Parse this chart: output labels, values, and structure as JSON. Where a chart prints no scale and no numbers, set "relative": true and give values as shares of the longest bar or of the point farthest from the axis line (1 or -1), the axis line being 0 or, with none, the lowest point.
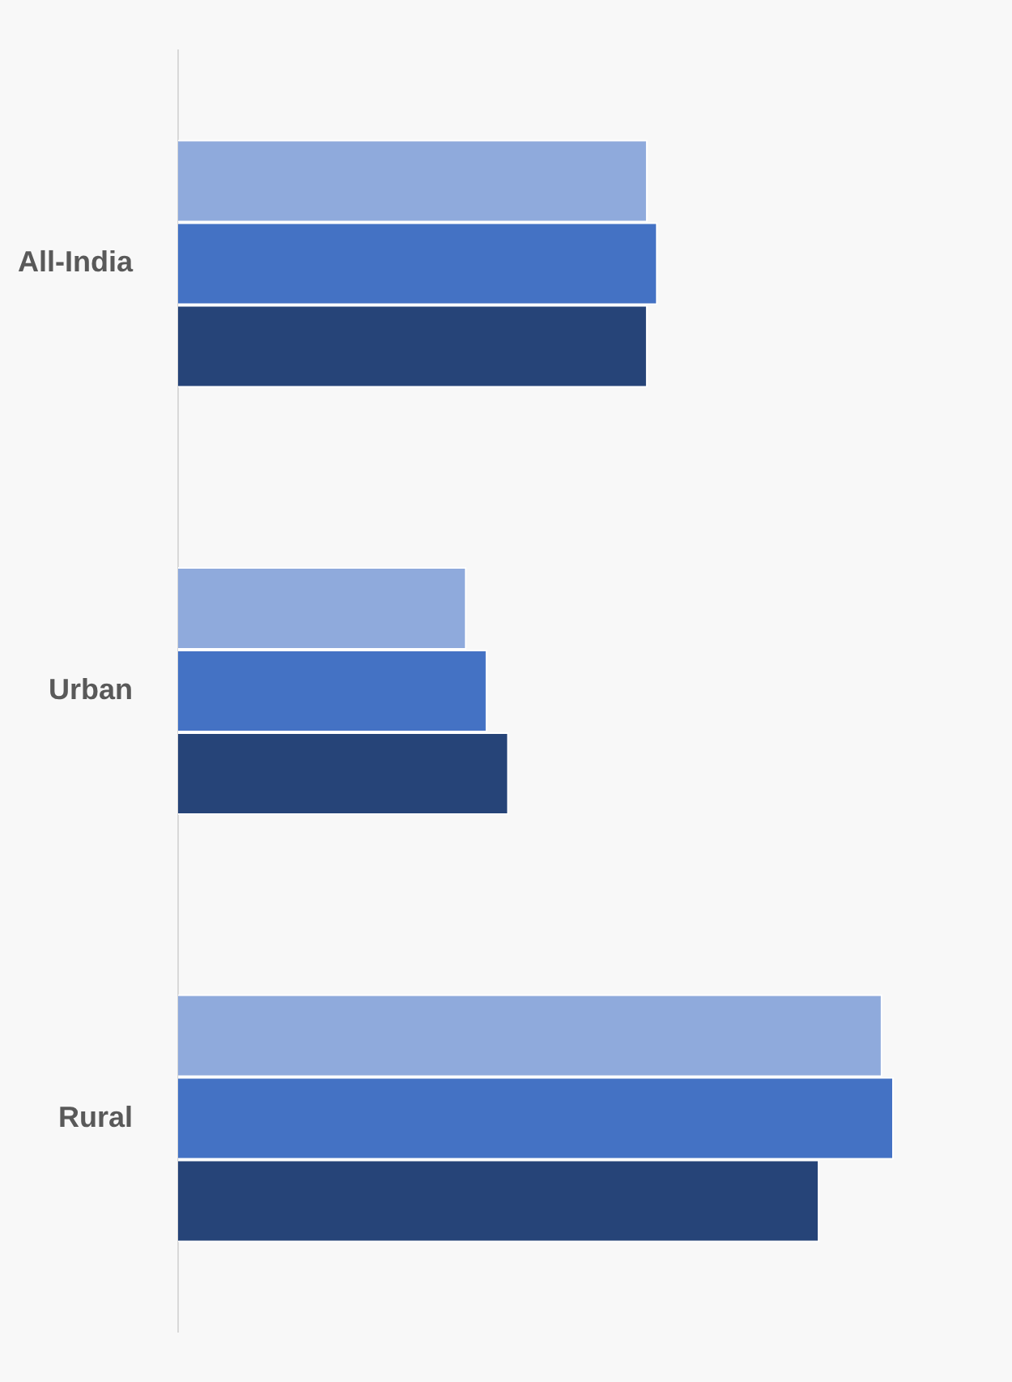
{
  "chart_data": {
    "type": "bar",
    "orientation": "horizontal",
    "relative": true,
    "categories": [
      "All-India",
      "Urban",
      "Rural"
    ],
    "series": [
      {
        "color": "#8faadc",
        "values": [
          0.656,
          0.403,
          0.984
        ]
      },
      {
        "color": "#4472c4",
        "values": [
          0.67,
          0.432,
          1
        ]
      },
      {
        "color": "#264478",
        "values": [
          0.656,
          0.462,
          0.896
        ]
      }
    ],
    "legend": false
  }
}
